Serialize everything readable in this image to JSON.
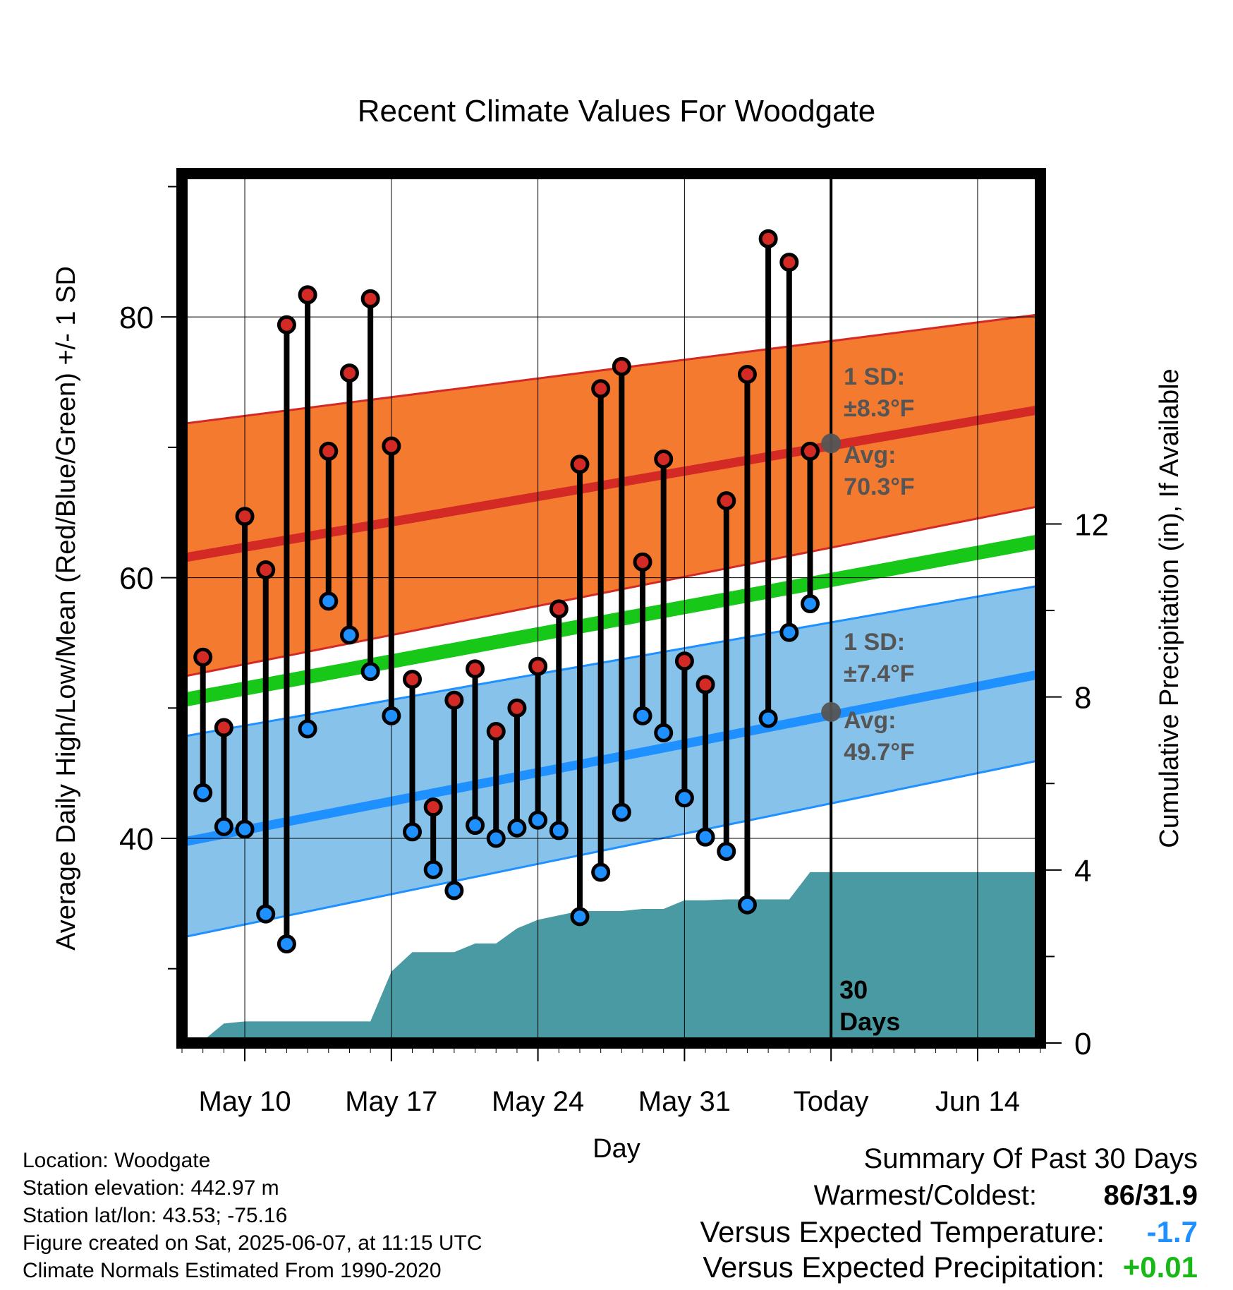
{
  "chart_data": {
    "type": "line",
    "title": "Recent Climate Values For Woodgate",
    "xlabel": "Day",
    "ylabel": "Average Daily High/Low/Mean (Red/Blue/Green) +/- 1 SD",
    "y2label": "Cumulative Precipitation (in), If Available",
    "x_start": "2025-05-07",
    "x_end": "2025-06-17",
    "today": "2025-06-07",
    "x_ticks": [
      "May 10",
      "May 17",
      "May 24",
      "May 31",
      "Today",
      "Jun 14"
    ],
    "x_tick_dates": [
      "2025-05-10",
      "2025-05-17",
      "2025-05-24",
      "2025-05-31",
      "2025-06-07",
      "2025-06-14"
    ],
    "ylim": [
      24.3,
      91
    ],
    "y_ticks": [
      40,
      60,
      80
    ],
    "y2lim": [
      0,
      20.1
    ],
    "y2_ticks": [
      0,
      4,
      8,
      12
    ],
    "grid": true,
    "today_label": "30 Days",
    "colors": {
      "high_band": "#f47a30",
      "high_mean": "#d42a26",
      "low_band": "#87c2ea",
      "low_mean": "#1e90ff",
      "daily_mean": "#18c818",
      "precip": "#4a9aa4",
      "annotation": "#555555"
    },
    "normals": {
      "dates": [
        "2025-05-07",
        "2025-06-17"
      ],
      "high_mean": [
        61.5,
        72.9
      ],
      "high_upper": [
        71.8,
        80.2
      ],
      "high_lower": [
        52.4,
        65.5
      ],
      "low_mean": [
        39.7,
        52.6
      ],
      "low_upper": [
        47.8,
        59.4
      ],
      "low_lower": [
        32.4,
        46.0
      ],
      "daily_mean": [
        50.6,
        62.8
      ]
    },
    "annotations": {
      "high_sd": "±8.3°F",
      "high_avg": "70.3°F",
      "low_sd": "±7.4°F",
      "low_avg": "49.7°F",
      "sd_label": "1 SD:",
      "avg_label": "Avg:",
      "high_avg_value": 70.3,
      "low_avg_value": 49.7
    },
    "series": [
      {
        "name": "Daily High",
        "dates": [
          "2025-05-08",
          "2025-05-09",
          "2025-05-10",
          "2025-05-11",
          "2025-05-12",
          "2025-05-13",
          "2025-05-14",
          "2025-05-15",
          "2025-05-16",
          "2025-05-17",
          "2025-05-18",
          "2025-05-19",
          "2025-05-20",
          "2025-05-21",
          "2025-05-22",
          "2025-05-23",
          "2025-05-24",
          "2025-05-25",
          "2025-05-26",
          "2025-05-27",
          "2025-05-28",
          "2025-05-29",
          "2025-05-30",
          "2025-05-31",
          "2025-06-01",
          "2025-06-02",
          "2025-06-03",
          "2025-06-04",
          "2025-06-05",
          "2025-06-06"
        ],
        "values": [
          53.9,
          48.5,
          64.7,
          60.6,
          79.4,
          81.7,
          69.7,
          75.7,
          81.4,
          70.1,
          52.2,
          42.4,
          50.6,
          53.0,
          48.2,
          50.0,
          53.2,
          57.6,
          68.7,
          74.5,
          76.2,
          61.2,
          69.1,
          53.6,
          51.8,
          65.9,
          75.6,
          86.0,
          84.2,
          69.7
        ]
      },
      {
        "name": "Daily Low",
        "values": [
          43.5,
          40.9,
          40.7,
          34.2,
          31.9,
          48.4,
          58.2,
          55.6,
          52.8,
          49.4,
          40.5,
          37.6,
          36.0,
          41.0,
          40.0,
          40.8,
          41.4,
          40.6,
          34.0,
          37.4,
          42.0,
          49.4,
          48.1,
          43.1,
          40.1,
          39.0,
          34.9,
          49.2,
          55.8,
          58.0
        ]
      }
    ],
    "precip_cumulative": {
      "dates": [
        "2025-05-08",
        "2025-05-09",
        "2025-05-10",
        "2025-05-11",
        "2025-05-12",
        "2025-05-13",
        "2025-05-14",
        "2025-05-15",
        "2025-05-16",
        "2025-05-17",
        "2025-05-18",
        "2025-05-19",
        "2025-05-20",
        "2025-05-21",
        "2025-05-22",
        "2025-05-23",
        "2025-05-24",
        "2025-05-25",
        "2025-05-26",
        "2025-05-27",
        "2025-05-28",
        "2025-05-29",
        "2025-05-30",
        "2025-05-31",
        "2025-06-01",
        "2025-06-02",
        "2025-06-03",
        "2025-06-04",
        "2025-06-05",
        "2025-06-06",
        "2025-06-17"
      ],
      "values": [
        0.05,
        0.45,
        0.5,
        0.5,
        0.5,
        0.5,
        0.5,
        0.5,
        0.5,
        1.65,
        2.1,
        2.1,
        2.1,
        2.3,
        2.3,
        2.65,
        2.85,
        2.95,
        3.05,
        3.05,
        3.05,
        3.1,
        3.1,
        3.3,
        3.3,
        3.32,
        3.32,
        3.32,
        3.32,
        3.95,
        3.95
      ]
    }
  },
  "info": {
    "location": "Location: Woodgate",
    "elevation": "Station elevation: 442.97 m",
    "latlon": "Station lat/lon: 43.53; -75.16",
    "created": "Figure created on Sat, 2025-06-07, at 11:15 UTC",
    "normals": "Climate Normals Estimated From 1990-2020"
  },
  "summary": {
    "title": "Summary Of Past 30 Days",
    "warmest_coldest_label": "Warmest/Coldest:",
    "warmest_coldest_value": "86/31.9",
    "temp_label": "Versus Expected Temperature:",
    "temp_value": "-1.7",
    "temp_color": "#1e90ff",
    "precip_label": "Versus Expected Precipitation:",
    "precip_value": "+0.01",
    "precip_color": "#18b818"
  }
}
